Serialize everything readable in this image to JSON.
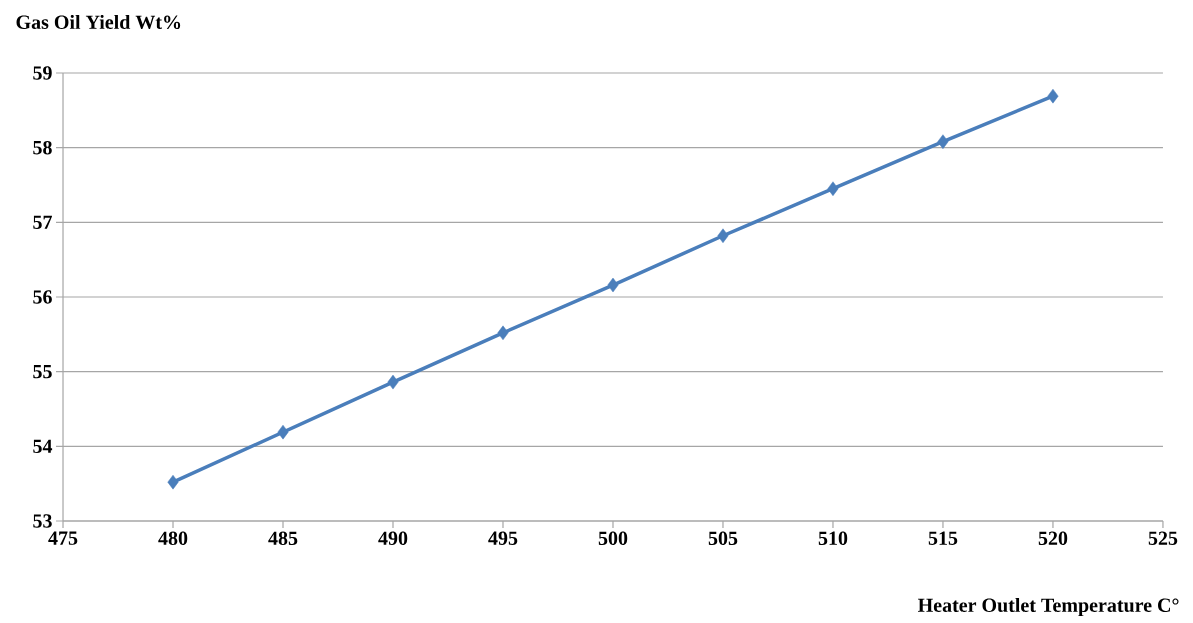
{
  "chart_data": {
    "type": "line",
    "xlabel": "Heater Outlet Temperature C°",
    "ylabel": "Gas Oil Yield Wt%",
    "x": [
      480,
      485,
      490,
      495,
      500,
      505,
      510,
      515,
      520
    ],
    "series": [
      {
        "color": "#4a7ebb",
        "values": [
          53.52,
          54.19,
          54.86,
          55.52,
          56.16,
          56.82,
          57.45,
          58.08,
          58.69
        ]
      }
    ],
    "xlim": [
      475,
      525
    ],
    "xticks": [
      475,
      480,
      485,
      490,
      495,
      500,
      505,
      510,
      515,
      520,
      525
    ],
    "ylim": [
      53,
      59
    ],
    "yticks": [
      53,
      54,
      55,
      56,
      57,
      58,
      59
    ],
    "grid": "y",
    "marker": "diamond",
    "line_style": "solid"
  }
}
